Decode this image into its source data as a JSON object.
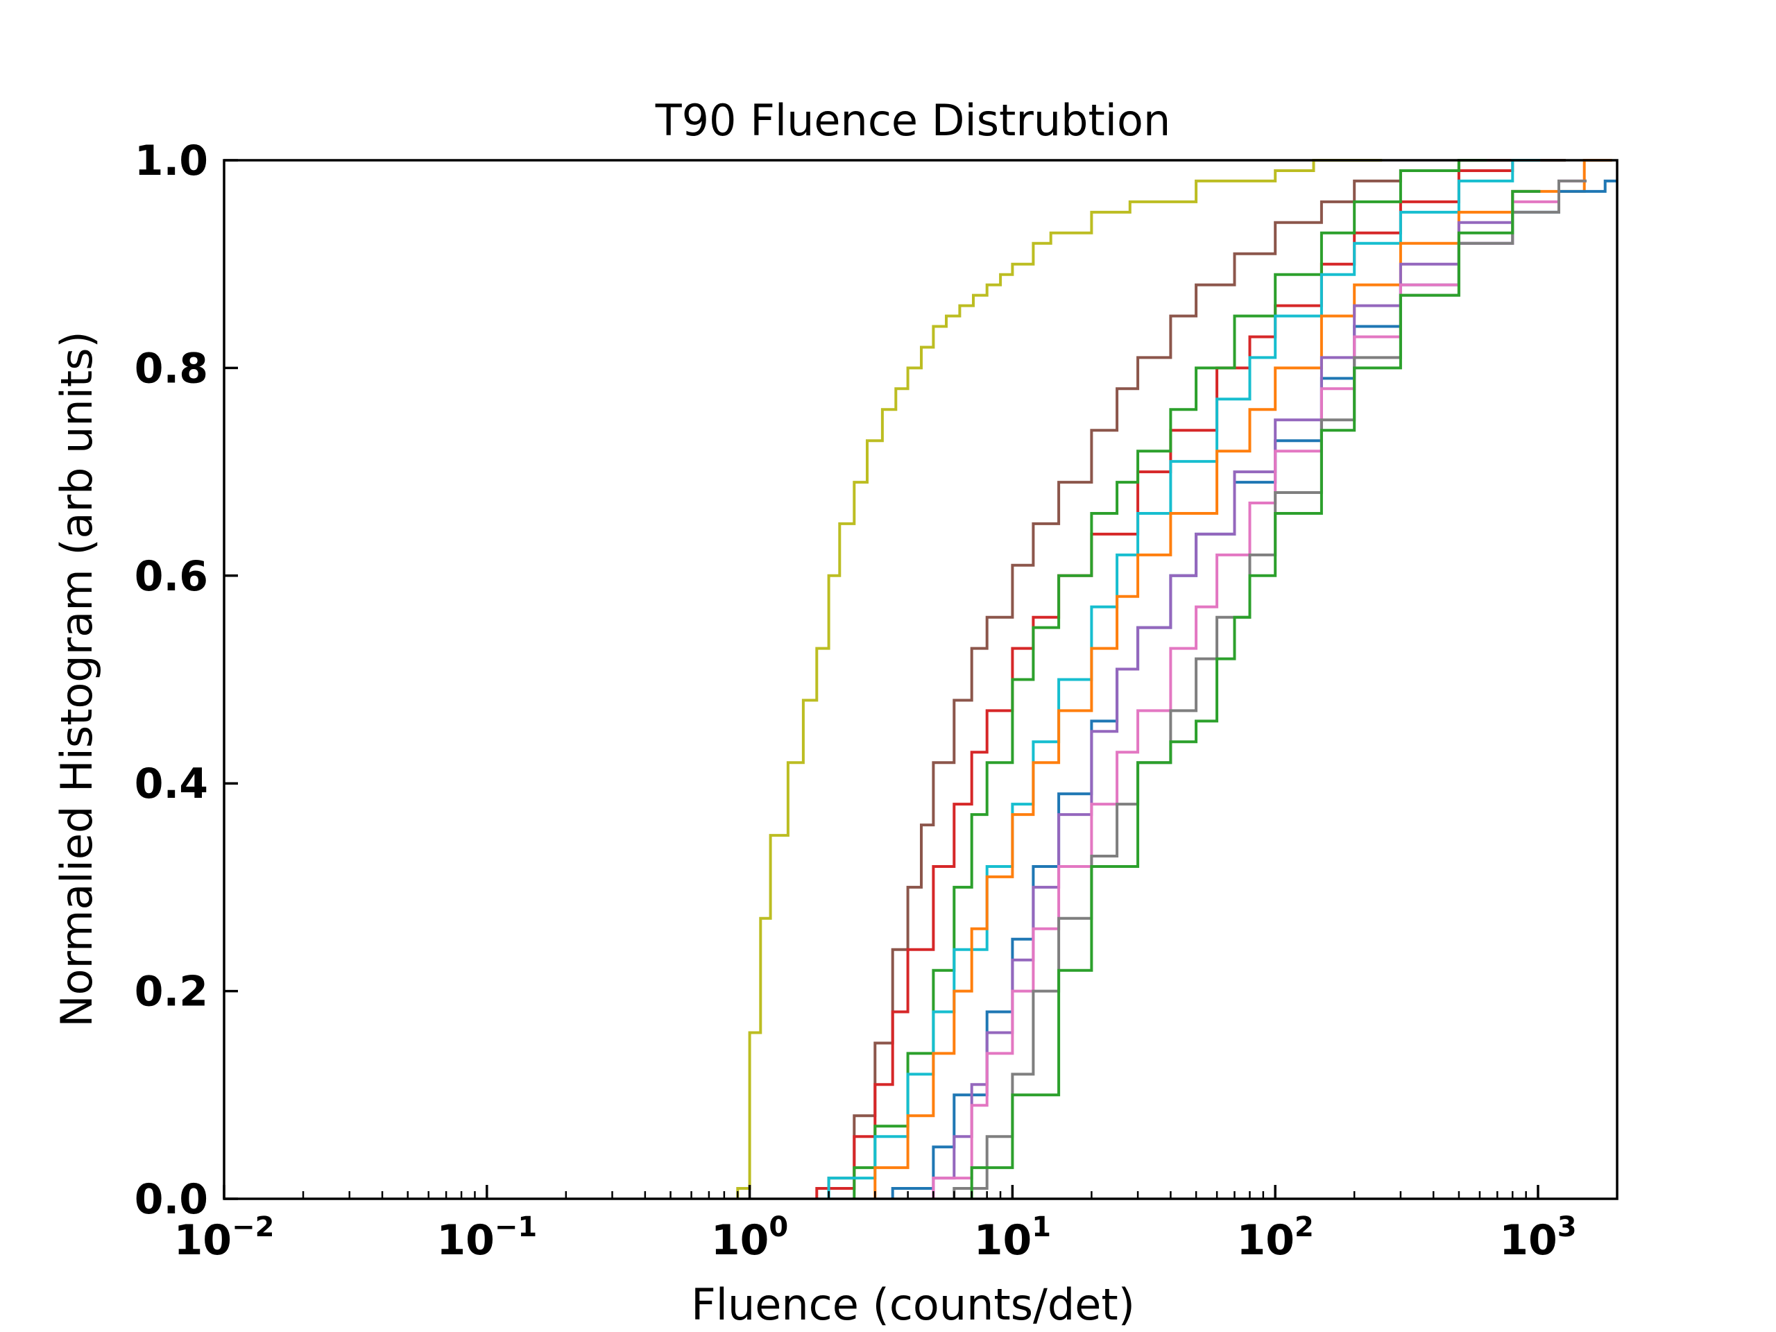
{
  "chart_data": {
    "type": "line",
    "title": "T90 Fluence Distrubtion",
    "xlabel": "Fluence (counts/det)",
    "ylabel": "Normalied Histogram (arb units)",
    "xscale": "log",
    "xlim": [
      0.01,
      2000
    ],
    "ylim": [
      0.0,
      1.0
    ],
    "x_ticks": [
      {
        "value": 0.01,
        "base": "10",
        "exp": "−2"
      },
      {
        "value": 0.1,
        "base": "10",
        "exp": "−1"
      },
      {
        "value": 1,
        "base": "10",
        "exp": "0"
      },
      {
        "value": 10,
        "base": "10",
        "exp": "1"
      },
      {
        "value": 100,
        "base": "10",
        "exp": "2"
      },
      {
        "value": 1000,
        "base": "10",
        "exp": "3"
      }
    ],
    "y_ticks": [
      {
        "value": 0.0,
        "label": "0.0"
      },
      {
        "value": 0.2,
        "label": "0.2"
      },
      {
        "value": 0.4,
        "label": "0.4"
      },
      {
        "value": 0.6,
        "label": "0.6"
      },
      {
        "value": 0.8,
        "label": "0.8"
      },
      {
        "value": 1.0,
        "label": "1.0"
      }
    ],
    "grid": false,
    "legend": "none",
    "series_style": "step cumulative histogram",
    "series": [
      {
        "color": "#bcbd22",
        "x": [
          0.9,
          1.0,
          1.1,
          1.2,
          1.4,
          1.6,
          1.8,
          2.0,
          2.2,
          2.5,
          2.8,
          3.2,
          3.6,
          4.0,
          4.5,
          5.0,
          5.6,
          6.3,
          7.1,
          8.0,
          9.0,
          10.0,
          12.0,
          14.0,
          20.0,
          28.0,
          50.0,
          70.0,
          100.0,
          140.0,
          200.0
        ],
        "y": [
          0.01,
          0.16,
          0.27,
          0.35,
          0.42,
          0.48,
          0.53,
          0.6,
          0.65,
          0.69,
          0.73,
          0.76,
          0.78,
          0.8,
          0.82,
          0.84,
          0.85,
          0.86,
          0.87,
          0.88,
          0.89,
          0.9,
          0.92,
          0.93,
          0.95,
          0.96,
          0.98,
          0.98,
          0.99,
          1.0,
          1.0
        ]
      },
      {
        "color": "#8c564b",
        "x": [
          2.0,
          2.5,
          3.0,
          3.5,
          4.0,
          4.5,
          5.0,
          6.0,
          7.0,
          8.0,
          10.0,
          12.0,
          15.0,
          20.0,
          25.0,
          30.0,
          40.0,
          50.0,
          70.0,
          100.0,
          150.0,
          200.0,
          300.0,
          500.0,
          1000.0
        ],
        "y": [
          0.02,
          0.08,
          0.15,
          0.24,
          0.3,
          0.36,
          0.42,
          0.48,
          0.53,
          0.56,
          0.61,
          0.65,
          0.69,
          0.74,
          0.78,
          0.81,
          0.85,
          0.88,
          0.91,
          0.94,
          0.96,
          0.98,
          0.99,
          1.0,
          1.0
        ]
      },
      {
        "color": "#d62728",
        "x": [
          1.8,
          2.5,
          3.0,
          3.5,
          4.0,
          5.0,
          6.0,
          7.0,
          8.0,
          10.0,
          12.0,
          15.0,
          20.0,
          30.0,
          40.0,
          60.0,
          80.0,
          100.0,
          150.0,
          200.0,
          300.0,
          500.0,
          800.0
        ],
        "y": [
          0.01,
          0.06,
          0.11,
          0.18,
          0.24,
          0.32,
          0.38,
          0.43,
          0.47,
          0.53,
          0.56,
          0.6,
          0.64,
          0.7,
          0.74,
          0.8,
          0.83,
          0.86,
          0.9,
          0.93,
          0.96,
          0.99,
          1.0
        ]
      },
      {
        "color": "#2ca02c",
        "x": [
          2.5,
          3.0,
          4.0,
          5.0,
          6.0,
          7.0,
          8.0,
          10.0,
          12.0,
          15.0,
          20.0,
          25.0,
          30.0,
          40.0,
          50.0,
          70.0,
          100.0,
          150.0,
          200.0,
          300.0,
          500.0
        ],
        "y": [
          0.03,
          0.07,
          0.14,
          0.22,
          0.3,
          0.37,
          0.42,
          0.5,
          0.55,
          0.6,
          0.66,
          0.69,
          0.72,
          0.76,
          0.8,
          0.85,
          0.89,
          0.93,
          0.96,
          0.99,
          1.0
        ]
      },
      {
        "color": "#17becf",
        "x": [
          2.0,
          3.0,
          4.0,
          5.0,
          6.0,
          8.0,
          10.0,
          12.0,
          15.0,
          20.0,
          25.0,
          30.0,
          40.0,
          60.0,
          80.0,
          100.0,
          150.0,
          200.0,
          300.0,
          500.0,
          800.0
        ],
        "y": [
          0.02,
          0.06,
          0.12,
          0.18,
          0.24,
          0.32,
          0.38,
          0.44,
          0.5,
          0.57,
          0.62,
          0.66,
          0.71,
          0.77,
          0.81,
          0.85,
          0.89,
          0.92,
          0.95,
          0.98,
          1.0
        ]
      },
      {
        "color": "#ff7f0e",
        "x": [
          3.0,
          4.0,
          5.0,
          6.0,
          7.0,
          8.0,
          10.0,
          12.0,
          15.0,
          20.0,
          25.0,
          30.0,
          40.0,
          60.0,
          80.0,
          100.0,
          150.0,
          200.0,
          300.0,
          500.0,
          800.0,
          1500.0
        ],
        "y": [
          0.03,
          0.08,
          0.14,
          0.2,
          0.26,
          0.31,
          0.37,
          0.42,
          0.47,
          0.53,
          0.58,
          0.62,
          0.66,
          0.72,
          0.76,
          0.8,
          0.85,
          0.88,
          0.92,
          0.95,
          0.97,
          1.0
        ]
      },
      {
        "color": "#1f77b4",
        "x": [
          3.5,
          5.0,
          6.0,
          8.0,
          10.0,
          12.0,
          15.0,
          20.0,
          25.0,
          30.0,
          40.0,
          50.0,
          70.0,
          100.0,
          150.0,
          200.0,
          300.0,
          500.0,
          800.0,
          1200.0,
          1800.0
        ],
        "y": [
          0.01,
          0.05,
          0.1,
          0.18,
          0.25,
          0.32,
          0.39,
          0.46,
          0.51,
          0.55,
          0.6,
          0.64,
          0.69,
          0.73,
          0.79,
          0.84,
          0.88,
          0.92,
          0.95,
          0.97,
          0.98
        ]
      },
      {
        "color": "#9467bd",
        "x": [
          5.0,
          6.0,
          7.0,
          8.0,
          10.0,
          12.0,
          15.0,
          20.0,
          25.0,
          30.0,
          40.0,
          50.0,
          70.0,
          100.0,
          150.0,
          200.0,
          300.0,
          500.0,
          800.0
        ],
        "y": [
          0.02,
          0.06,
          0.11,
          0.16,
          0.23,
          0.3,
          0.37,
          0.45,
          0.51,
          0.55,
          0.6,
          0.64,
          0.7,
          0.75,
          0.81,
          0.86,
          0.9,
          0.94,
          0.97
        ]
      },
      {
        "color": "#e377c2",
        "x": [
          5.0,
          7.0,
          8.0,
          10.0,
          12.0,
          15.0,
          20.0,
          25.0,
          30.0,
          40.0,
          50.0,
          60.0,
          80.0,
          100.0,
          150.0,
          200.0,
          300.0,
          500.0,
          800.0,
          1200.0
        ],
        "y": [
          0.02,
          0.09,
          0.14,
          0.2,
          0.26,
          0.32,
          0.38,
          0.43,
          0.47,
          0.53,
          0.57,
          0.62,
          0.67,
          0.72,
          0.78,
          0.83,
          0.88,
          0.92,
          0.96,
          0.98
        ]
      },
      {
        "color": "#7f7f7f",
        "x": [
          6.0,
          8.0,
          10.0,
          12.0,
          15.0,
          20.0,
          25.0,
          30.0,
          40.0,
          50.0,
          60.0,
          80.0,
          100.0,
          150.0,
          200.0,
          300.0,
          500.0,
          800.0,
          1200.0
        ],
        "y": [
          0.01,
          0.06,
          0.12,
          0.2,
          0.27,
          0.33,
          0.38,
          0.42,
          0.47,
          0.52,
          0.56,
          0.62,
          0.68,
          0.75,
          0.81,
          0.87,
          0.92,
          0.95,
          0.98
        ]
      },
      {
        "color": "#2ca02c",
        "x": [
          7.0,
          10.0,
          15.0,
          20.0,
          30.0,
          40.0,
          50.0,
          60.0,
          70.0,
          80.0,
          100.0,
          150.0,
          200.0,
          300.0,
          500.0,
          800.0
        ],
        "y": [
          0.03,
          0.1,
          0.22,
          0.32,
          0.42,
          0.44,
          0.46,
          0.52,
          0.56,
          0.6,
          0.66,
          0.74,
          0.8,
          0.87,
          0.93,
          0.97
        ]
      }
    ]
  }
}
